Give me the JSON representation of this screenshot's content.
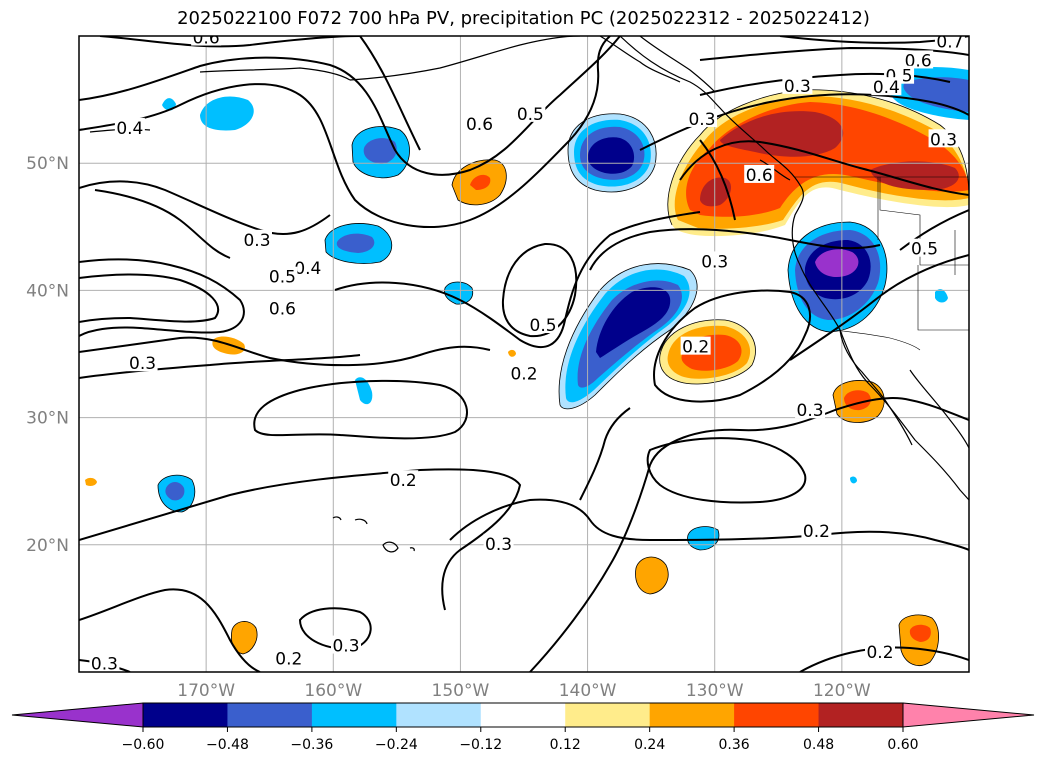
{
  "title": "2025022100 F072 700 hPa PV, precipitation PC (2025022312 - 2025022412)",
  "map": {
    "lon_range": [
      -180,
      -110
    ],
    "lat_range": [
      10,
      60
    ],
    "lat_ticks": [
      {
        "value": 50,
        "label": "50°N"
      },
      {
        "value": 40,
        "label": "40°N"
      },
      {
        "value": 30,
        "label": "30°N"
      },
      {
        "value": 20,
        "label": "20°N"
      }
    ],
    "lon_ticks": [
      {
        "value": -170,
        "label": "170°W"
      },
      {
        "value": -160,
        "label": "160°W"
      },
      {
        "value": -150,
        "label": "150°W"
      },
      {
        "value": -140,
        "label": "140°W"
      },
      {
        "value": -130,
        "label": "130°W"
      },
      {
        "value": -120,
        "label": "120°W"
      }
    ],
    "gridlines": true,
    "contour_labels": [
      {
        "text": "0.6",
        "lon": -170.0,
        "lat": 59.8
      },
      {
        "text": "0.4",
        "lon": -176.0,
        "lat": 52.7
      },
      {
        "text": "0.3",
        "lon": -166.0,
        "lat": 43.9
      },
      {
        "text": "0.4",
        "lon": -162.0,
        "lat": 41.7
      },
      {
        "text": "0.5",
        "lon": -164.0,
        "lat": 41.0
      },
      {
        "text": "0.6",
        "lon": -164.0,
        "lat": 38.5
      },
      {
        "text": "0.3",
        "lon": -175.0,
        "lat": 34.2
      },
      {
        "text": "0.2",
        "lon": -145.0,
        "lat": 33.4
      },
      {
        "text": "0.6",
        "lon": -148.5,
        "lat": 53.0
      },
      {
        "text": "0.5",
        "lon": -144.5,
        "lat": 53.8
      },
      {
        "text": "0.3",
        "lon": -131.0,
        "lat": 53.4
      },
      {
        "text": "0.3",
        "lon": -123.5,
        "lat": 56.0
      },
      {
        "text": "0.6",
        "lon": -114.0,
        "lat": 58.0
      },
      {
        "text": "0.5",
        "lon": -115.5,
        "lat": 56.8
      },
      {
        "text": "0.4",
        "lon": -116.5,
        "lat": 55.9
      },
      {
        "text": "0.7",
        "lon": -111.5,
        "lat": 59.5
      },
      {
        "text": "0.3",
        "lon": -112.0,
        "lat": 51.8
      },
      {
        "text": "0.6",
        "lon": -126.5,
        "lat": 49.0
      },
      {
        "text": "0.5",
        "lon": -113.5,
        "lat": 43.2
      },
      {
        "text": "0.3",
        "lon": -130.0,
        "lat": 42.2
      },
      {
        "text": "0.5",
        "lon": -143.5,
        "lat": 37.2
      },
      {
        "text": "0.2",
        "lon": -131.5,
        "lat": 35.5
      },
      {
        "text": "0.3",
        "lon": -122.5,
        "lat": 30.5
      },
      {
        "text": "0.2",
        "lon": -154.5,
        "lat": 25.0
      },
      {
        "text": "0.3",
        "lon": -147.0,
        "lat": 20.0
      },
      {
        "text": "0.2",
        "lon": -122.0,
        "lat": 21.0
      },
      {
        "text": "0.3",
        "lon": -159.0,
        "lat": 12.0
      },
      {
        "text": "0.2",
        "lon": -163.5,
        "lat": 11.0
      },
      {
        "text": "0.2",
        "lon": -117.0,
        "lat": 11.5
      },
      {
        "text": "0.3",
        "lon": -178.0,
        "lat": 10.6
      }
    ]
  },
  "colorbar": {
    "tick_labels": [
      "−0.60",
      "−0.48",
      "−0.36",
      "−0.24",
      "−0.12",
      "0.12",
      "0.24",
      "0.36",
      "0.48",
      "0.60"
    ],
    "colors": [
      "#9932cc",
      "#00008b",
      "#3a5fcd",
      "#00bfff",
      "#b0e2ff",
      "#ffffff",
      "#ffec8b",
      "#ffa500",
      "#ff4500",
      "#b22222",
      "#ff82ab"
    ]
  }
}
